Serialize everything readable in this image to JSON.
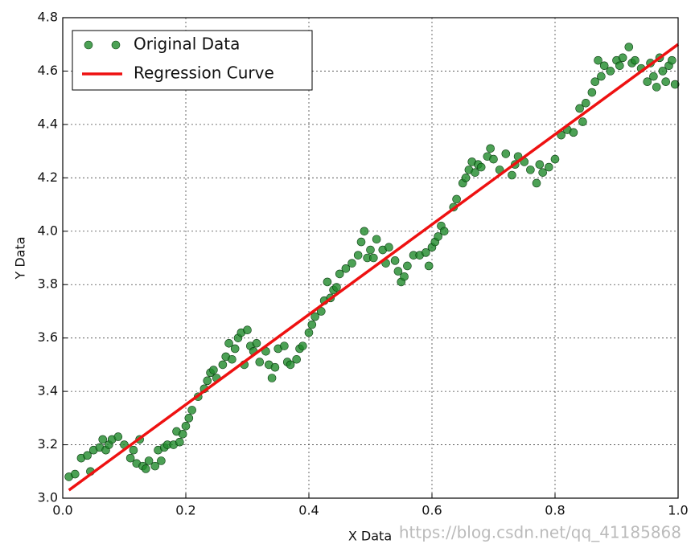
{
  "chart_data": {
    "type": "scatter",
    "xlabel": "X Data",
    "ylabel": "Y Data",
    "xlim": [
      0,
      1
    ],
    "ylim": [
      3,
      4.8
    ],
    "xticks": [
      {
        "value": 0,
        "label": "0.0"
      },
      0.2,
      0.4,
      0.6,
      0.8,
      {
        "value": 1,
        "label": "1.0"
      }
    ],
    "yticks": [
      {
        "value": 3,
        "label": "3.0"
      },
      3.2,
      3.4,
      3.6,
      3.8,
      {
        "value": 4,
        "label": "4.0"
      },
      4.2,
      4.4,
      4.6,
      4.8
    ],
    "grid": true,
    "legend": "upper-left",
    "watermark": "https://blog.csdn.net/qq_41185868",
    "series": [
      {
        "name": "Original Data",
        "type": "scatter",
        "color": "#1f8a2a",
        "x": [
          0.01,
          0.02,
          0.03,
          0.04,
          0.045,
          0.05,
          0.06,
          0.065,
          0.07,
          0.075,
          0.08,
          0.09,
          0.1,
          0.11,
          0.115,
          0.12,
          0.125,
          0.13,
          0.135,
          0.14,
          0.15,
          0.155,
          0.16,
          0.165,
          0.17,
          0.18,
          0.185,
          0.19,
          0.195,
          0.2,
          0.205,
          0.21,
          0.22,
          0.23,
          0.235,
          0.24,
          0.245,
          0.25,
          0.26,
          0.265,
          0.27,
          0.275,
          0.28,
          0.285,
          0.29,
          0.295,
          0.3,
          0.305,
          0.31,
          0.315,
          0.32,
          0.33,
          0.335,
          0.34,
          0.345,
          0.35,
          0.36,
          0.365,
          0.37,
          0.38,
          0.385,
          0.39,
          0.4,
          0.405,
          0.41,
          0.42,
          0.425,
          0.43,
          0.435,
          0.44,
          0.445,
          0.45,
          0.46,
          0.47,
          0.48,
          0.485,
          0.49,
          0.495,
          0.5,
          0.505,
          0.51,
          0.52,
          0.525,
          0.53,
          0.54,
          0.545,
          0.55,
          0.555,
          0.56,
          0.57,
          0.58,
          0.59,
          0.595,
          0.6,
          0.605,
          0.61,
          0.615,
          0.62,
          0.635,
          0.64,
          0.65,
          0.655,
          0.66,
          0.665,
          0.67,
          0.675,
          0.68,
          0.69,
          0.695,
          0.7,
          0.71,
          0.72,
          0.73,
          0.735,
          0.74,
          0.75,
          0.76,
          0.77,
          0.775,
          0.78,
          0.79,
          0.8,
          0.81,
          0.82,
          0.83,
          0.84,
          0.845,
          0.85,
          0.86,
          0.865,
          0.87,
          0.875,
          0.88,
          0.89,
          0.9,
          0.905,
          0.91,
          0.92,
          0.925,
          0.93,
          0.94,
          0.95,
          0.955,
          0.96,
          0.965,
          0.97,
          0.975,
          0.98,
          0.985,
          0.99,
          0.995
        ],
        "values": [
          3.08,
          3.09,
          3.15,
          3.16,
          3.1,
          3.18,
          3.19,
          3.22,
          3.18,
          3.2,
          3.22,
          3.23,
          3.2,
          3.15,
          3.18,
          3.13,
          3.22,
          3.12,
          3.11,
          3.14,
          3.12,
          3.18,
          3.14,
          3.19,
          3.2,
          3.2,
          3.25,
          3.21,
          3.24,
          3.27,
          3.3,
          3.33,
          3.38,
          3.41,
          3.44,
          3.47,
          3.48,
          3.45,
          3.5,
          3.53,
          3.58,
          3.52,
          3.56,
          3.6,
          3.62,
          3.5,
          3.63,
          3.57,
          3.55,
          3.58,
          3.51,
          3.55,
          3.5,
          3.45,
          3.49,
          3.56,
          3.57,
          3.51,
          3.5,
          3.52,
          3.56,
          3.57,
          3.62,
          3.65,
          3.68,
          3.7,
          3.74,
          3.81,
          3.75,
          3.78,
          3.79,
          3.84,
          3.86,
          3.88,
          3.91,
          3.96,
          4.0,
          3.9,
          3.93,
          3.9,
          3.97,
          3.93,
          3.88,
          3.94,
          3.89,
          3.85,
          3.81,
          3.83,
          3.87,
          3.91,
          3.91,
          3.92,
          3.87,
          3.94,
          3.96,
          3.98,
          4.02,
          4.0,
          4.09,
          4.12,
          4.18,
          4.2,
          4.23,
          4.26,
          4.22,
          4.25,
          4.24,
          4.28,
          4.31,
          4.27,
          4.23,
          4.29,
          4.21,
          4.25,
          4.28,
          4.26,
          4.23,
          4.18,
          4.25,
          4.22,
          4.24,
          4.27,
          4.36,
          4.38,
          4.37,
          4.46,
          4.41,
          4.48,
          4.52,
          4.56,
          4.64,
          4.58,
          4.62,
          4.6,
          4.64,
          4.62,
          4.65,
          4.69,
          4.63,
          4.64,
          4.61,
          4.56,
          4.63,
          4.58,
          4.54,
          4.65,
          4.6,
          4.56,
          4.62,
          4.64,
          4.55
        ]
      },
      {
        "name": "Regression Curve",
        "type": "line",
        "color": "#ee1111",
        "x": [
          0.01,
          1
        ],
        "values": [
          3.03,
          4.7
        ]
      }
    ]
  }
}
